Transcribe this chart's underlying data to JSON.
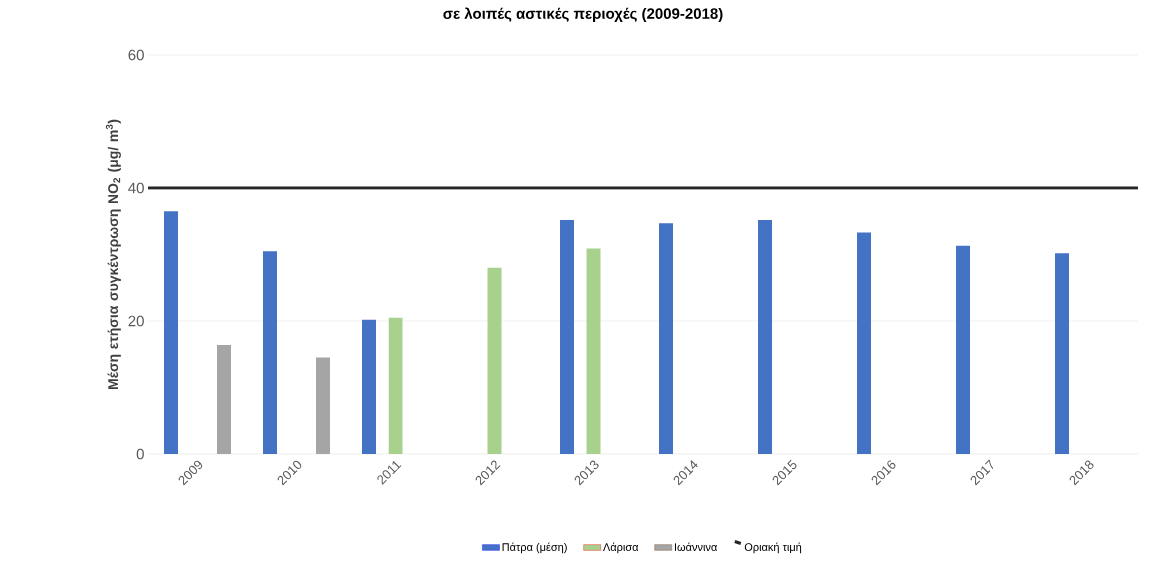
{
  "chart_data": {
    "type": "bar",
    "title": "σε λοιπές αστικές περιοχές (2009-2018)",
    "ylabel": "Μέση ετήσια συγκέντρωση NO$_{2}$ (μg/ m$^{3}$)",
    "categories": [
      "2009",
      "2010",
      "2011",
      "2012",
      "2013",
      "2014",
      "2015",
      "2016",
      "2017",
      "2018"
    ],
    "series": [
      {
        "name": "Πάτρα (μέση)",
        "color": "#4472c4",
        "values": [
          36.5,
          30.5,
          20.2,
          null,
          35.2,
          34.7,
          35.2,
          33.3,
          31.3,
          30.2
        ]
      },
      {
        "name": "Λάρισα",
        "color": "#a9d18e",
        "values": [
          null,
          null,
          20.5,
          28,
          30.9,
          null,
          null,
          null,
          null,
          null
        ]
      },
      {
        "name": "Ιωάννινα",
        "color": "#a5a5a5",
        "values": [
          16.4,
          14.5,
          null,
          null,
          null,
          null,
          null,
          null,
          null,
          null
        ]
      }
    ],
    "ylim": [
      0,
      60
    ],
    "yticks": [
      0,
      20,
      40,
      60
    ],
    "grid": "y",
    "legend": "bottom",
    "ref_lines": [
      {
        "axis": "y",
        "value": 40,
        "label": "Οριακή τιμή",
        "color": "#262626"
      }
    ]
  }
}
